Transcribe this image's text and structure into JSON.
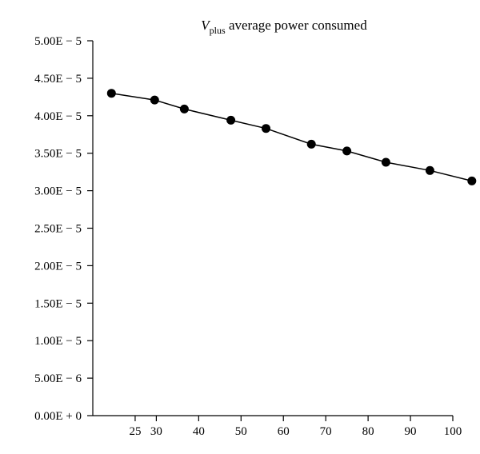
{
  "chart_data": {
    "type": "line",
    "title": {
      "main": "V",
      "subscript": "plus",
      "rest": " average power consumed"
    },
    "xlabel": "",
    "ylabel": "",
    "xlim": [
      15,
      100
    ],
    "ylim": [
      0,
      5e-05
    ],
    "x_ticks": [
      {
        "value": 25,
        "label": "25"
      },
      {
        "value": 30,
        "label": "30"
      },
      {
        "value": 40,
        "label": "40"
      },
      {
        "value": 50,
        "label": "50"
      },
      {
        "value": 60,
        "label": "60"
      },
      {
        "value": 70,
        "label": "70"
      },
      {
        "value": 80,
        "label": "80"
      },
      {
        "value": 90,
        "label": "90"
      },
      {
        "value": 100,
        "label": "100"
      }
    ],
    "y_ticks": [
      {
        "value": 0.0,
        "label": "0.00E + 0"
      },
      {
        "value": 5e-06,
        "label": "5.00E − 6"
      },
      {
        "value": 1e-05,
        "label": "1.00E − 5"
      },
      {
        "value": 1.5e-05,
        "label": "1.50E − 5"
      },
      {
        "value": 2e-05,
        "label": "2.00E − 5"
      },
      {
        "value": 2.5e-05,
        "label": "2.50E − 5"
      },
      {
        "value": 3e-05,
        "label": "3.00E − 5"
      },
      {
        "value": 3.5e-05,
        "label": "3.50E − 5"
      },
      {
        "value": 4e-05,
        "label": "4.00E − 5"
      },
      {
        "value": 4.5e-05,
        "label": "4.50E − 5"
      },
      {
        "value": 5e-05,
        "label": "5.00E − 5"
      }
    ],
    "grid": false,
    "series": [
      {
        "x": [
          19.4,
          29.6,
          36.6,
          47.6,
          55.9,
          66.6,
          75.0,
          84.2,
          94.6,
          104.5
        ],
        "y": [
          4.3e-05,
          4.21e-05,
          4.09e-05,
          3.94e-05,
          3.83e-05,
          3.62e-05,
          3.53e-05,
          3.38e-05,
          3.27e-05,
          3.13e-05
        ],
        "color": "#000000",
        "marker": "circle"
      }
    ]
  }
}
